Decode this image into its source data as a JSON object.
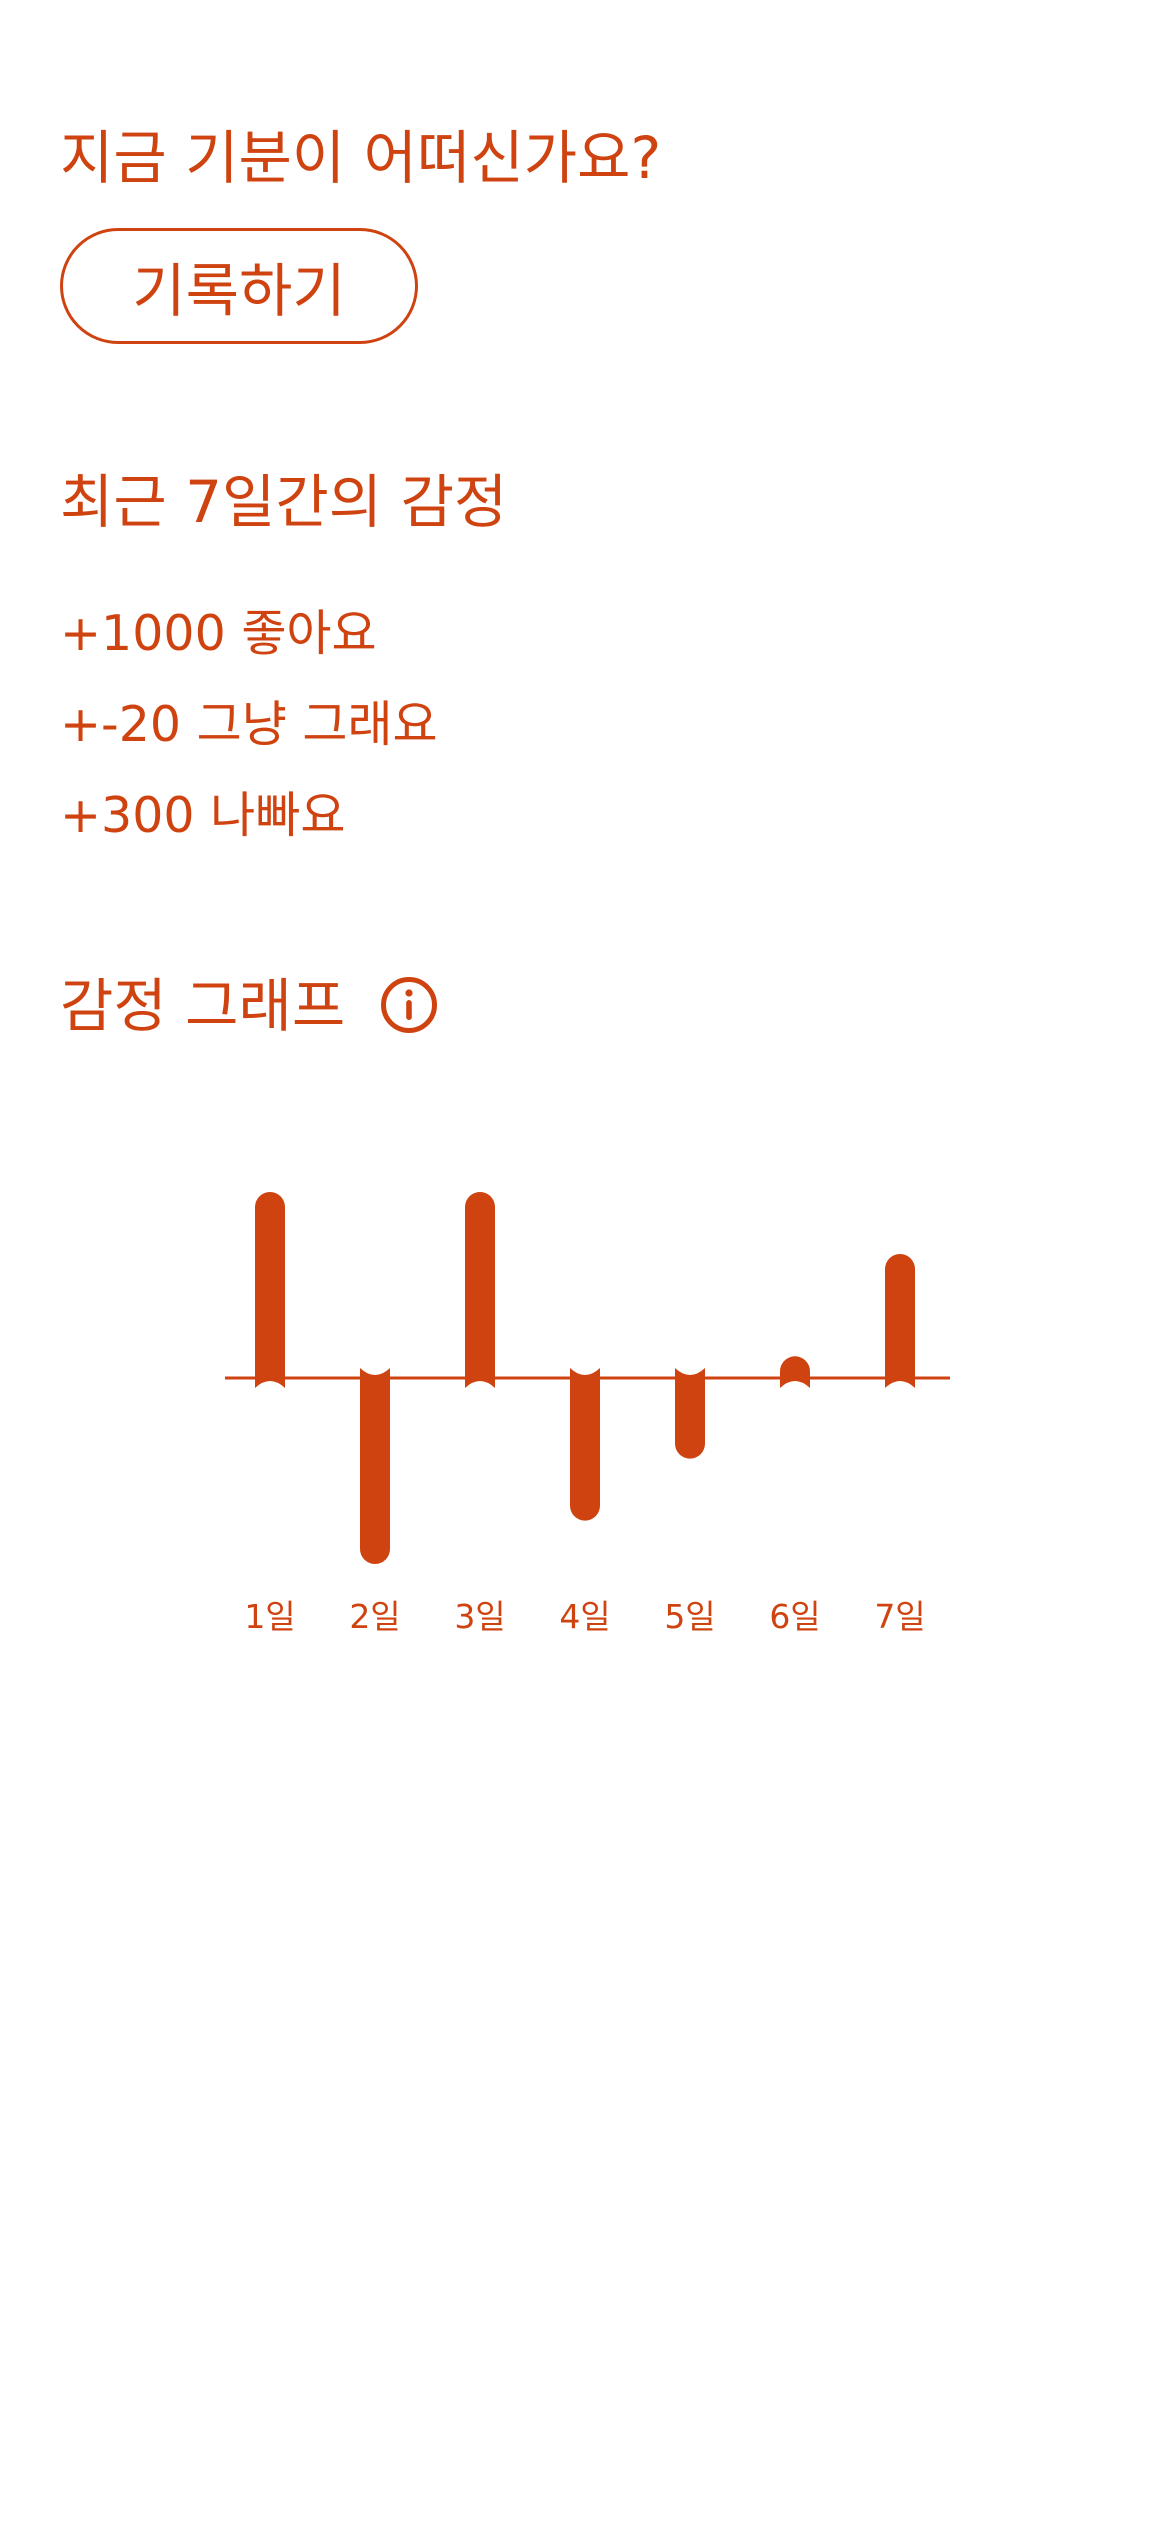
{
  "prompt": {
    "question": "지금 기분이 어떠신가요?",
    "record_button_label": "기록하기"
  },
  "summary": {
    "title": "최근 7일간의 감정",
    "items": [
      {
        "text": "+1000 좋아요"
      },
      {
        "text": "+-20 그냥 그래요"
      },
      {
        "text": "+300 나빠요"
      }
    ]
  },
  "graph": {
    "title": "감정 그래프",
    "info_icon": "info-icon"
  },
  "colors": {
    "accent": "#cf4310",
    "background": "#ffffff"
  },
  "chart_data": {
    "type": "bar",
    "categories": [
      "1일",
      "2일",
      "3일",
      "4일",
      "5일",
      "6일",
      "7일"
    ],
    "values": [
      6,
      -6,
      6,
      -4.6,
      -2.6,
      0.7,
      4
    ]
  }
}
